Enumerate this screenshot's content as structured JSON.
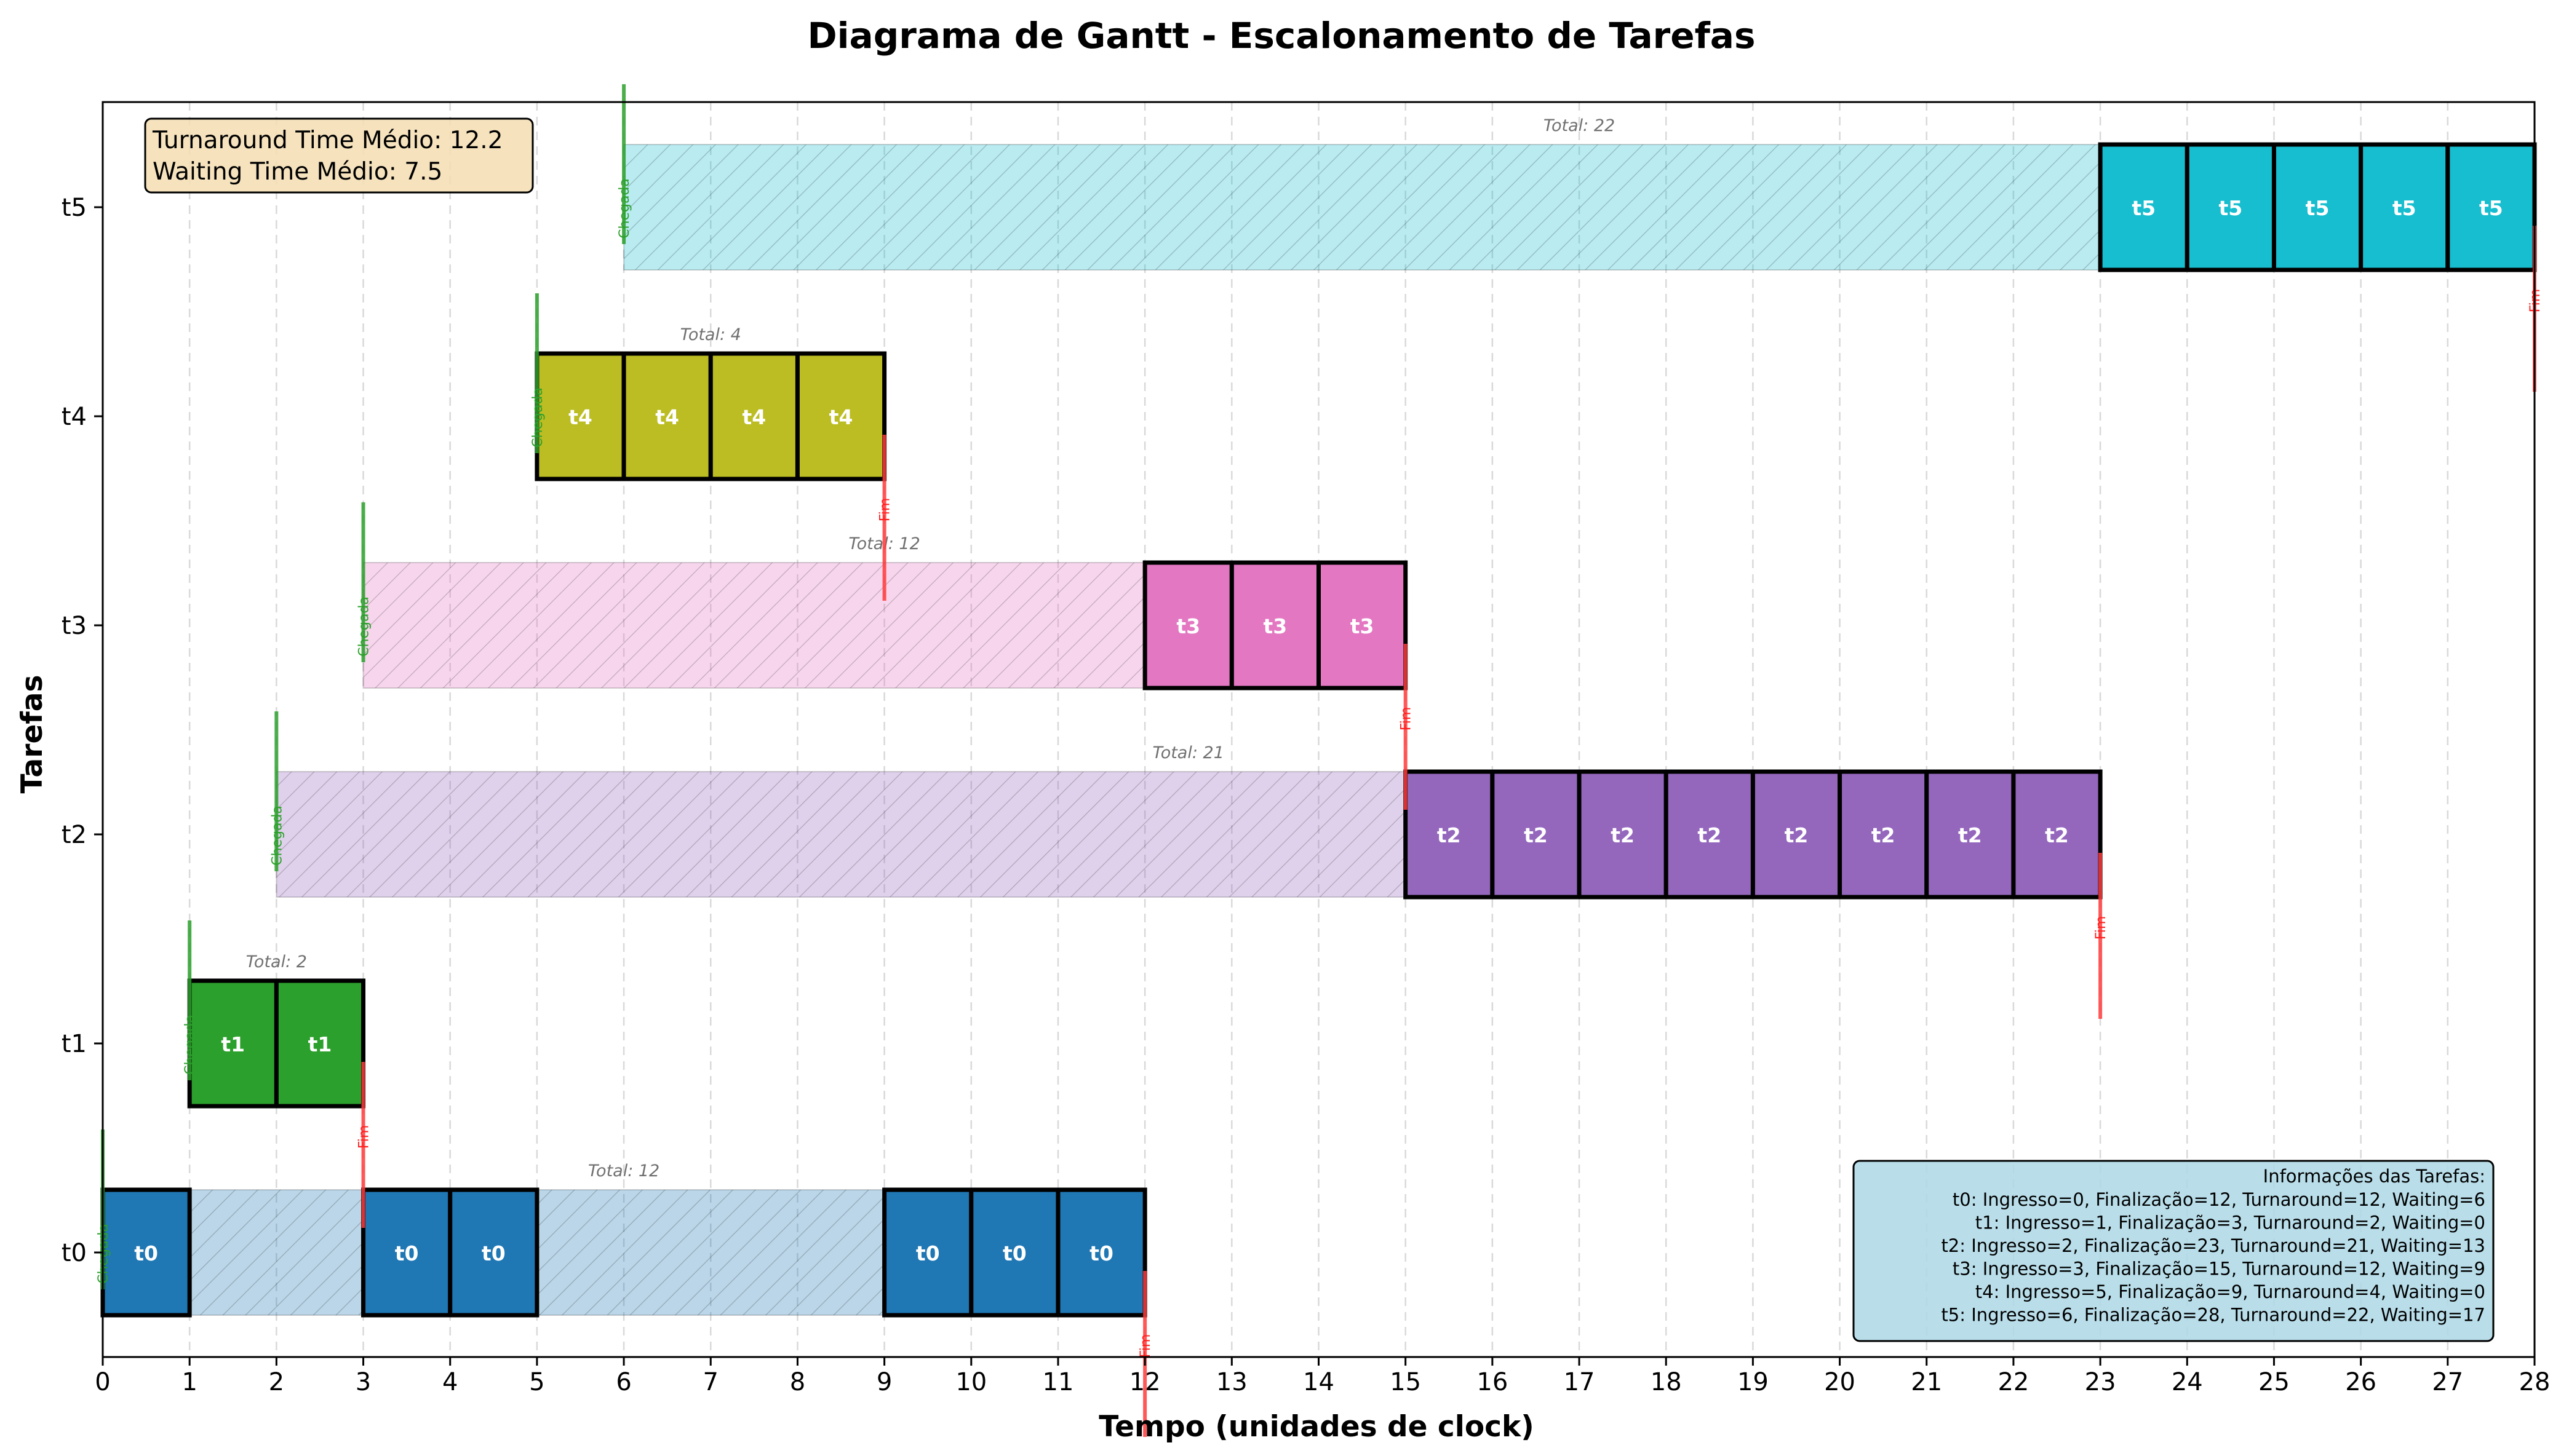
{
  "chart_data": {
    "type": "gantt",
    "title": "Diagrama de Gantt - Escalonamento de Tarefas",
    "xlabel": "Tempo (unidades de clock)",
    "ylabel": "Tarefas",
    "xlim": [
      0,
      28
    ],
    "x_ticks": [
      0,
      1,
      2,
      3,
      4,
      5,
      6,
      7,
      8,
      9,
      10,
      11,
      12,
      13,
      14,
      15,
      16,
      17,
      18,
      19,
      20,
      21,
      22,
      23,
      24,
      25,
      26,
      27,
      28
    ],
    "grid": "vertical-dashed",
    "arrival_label": "Chegada",
    "end_label": "Fim",
    "tasks": [
      {
        "name": "t0",
        "color": "#1f77b4",
        "arrival": 0,
        "finish": 12,
        "total_label": "Total: 12",
        "executions": [
          0,
          3,
          4,
          9,
          10,
          11
        ]
      },
      {
        "name": "t1",
        "color": "#2ca02c",
        "arrival": 1,
        "finish": 3,
        "total_label": "Total: 2",
        "executions": [
          1,
          2
        ]
      },
      {
        "name": "t2",
        "color": "#9467bd",
        "arrival": 2,
        "finish": 23,
        "total_label": "Total: 21",
        "executions": [
          15,
          16,
          17,
          18,
          19,
          20,
          21,
          22
        ]
      },
      {
        "name": "t3",
        "color": "#e377c2",
        "arrival": 3,
        "finish": 15,
        "total_label": "Total: 12",
        "executions": [
          12,
          13,
          14
        ]
      },
      {
        "name": "t4",
        "color": "#bcbd22",
        "arrival": 5,
        "finish": 9,
        "total_label": "Total: 4",
        "executions": [
          5,
          6,
          7,
          8
        ]
      },
      {
        "name": "t5",
        "color": "#17becf",
        "arrival": 6,
        "finish": 28,
        "total_label": "Total: 22",
        "executions": [
          23,
          24,
          25,
          26,
          27
        ]
      }
    ],
    "averages": {
      "turnaround": "Turnaround Time Médio: 12.2",
      "waiting": "Waiting Time Médio: 7.5"
    },
    "info_box": {
      "title": "Informações das Tarefas:",
      "lines": [
        "t0: Ingresso=0, Finalização=12, Turnaround=12, Waiting=6",
        "t1: Ingresso=1, Finalização=3, Turnaround=2, Waiting=0",
        "t2: Ingresso=2, Finalização=23, Turnaround=21, Waiting=13",
        "t3: Ingresso=3, Finalização=15, Turnaround=12, Waiting=9",
        "t4: Ingresso=5, Finalização=9, Turnaround=4, Waiting=0",
        "t5: Ingresso=6, Finalização=28, Turnaround=22, Waiting=17"
      ]
    }
  }
}
